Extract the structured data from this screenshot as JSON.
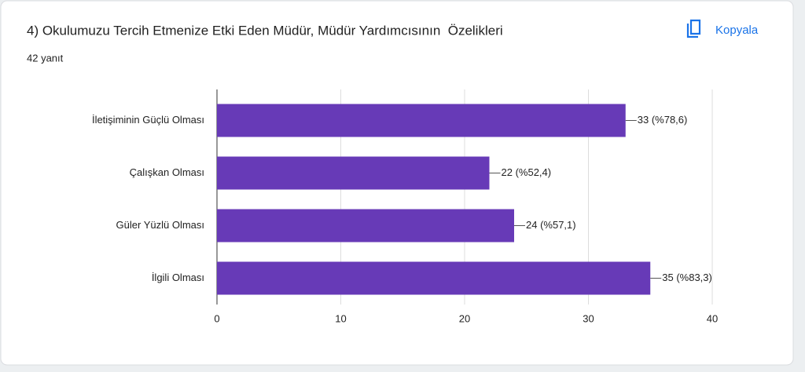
{
  "chart_data": {
    "type": "bar",
    "orientation": "horizontal",
    "title": "4) Okulumuzu Tercih Etmenize Etki Eden Müdür, Müdür Yardımcısının  Özelikleri",
    "subtitle": "42 yanıt",
    "categories": [
      "İletişiminin Güçlü Olması",
      "Çalışkan Olması",
      "Güler Yüzlü Olması",
      "İlgili Olması"
    ],
    "values": [
      33,
      22,
      24,
      35
    ],
    "value_labels": [
      "33 (%78,6)",
      "22 (%52,4)",
      "24 (%57,1)",
      "35 (%83,3)"
    ],
    "color": "#673ab7",
    "xlim": [
      0,
      40
    ],
    "xticks": [
      0,
      10,
      20,
      30,
      40
    ],
    "grid": true
  },
  "toolbar": {
    "copy": "Kopyala"
  }
}
